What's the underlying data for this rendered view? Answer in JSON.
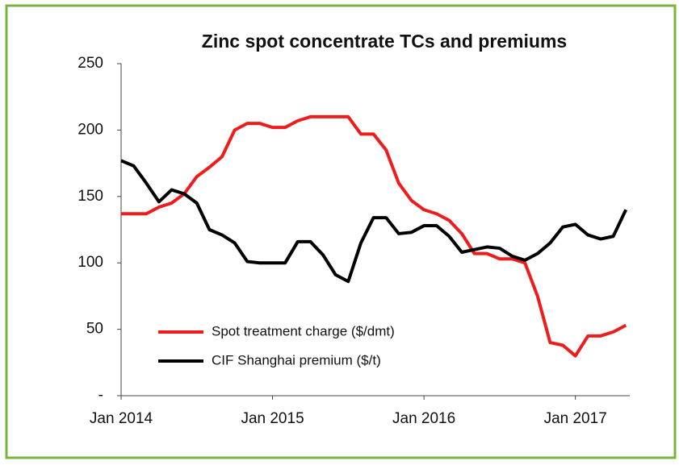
{
  "chart_data": {
    "type": "line",
    "title": "Zinc spot concentrate TCs and premiums",
    "categories": [
      "Jan 2014",
      null,
      null,
      null,
      null,
      null,
      null,
      null,
      null,
      null,
      null,
      null,
      "Jan 2015",
      null,
      null,
      null,
      null,
      null,
      null,
      null,
      null,
      null,
      null,
      null,
      "Jan 2016",
      null,
      null,
      null,
      null,
      null,
      null,
      null,
      null,
      null,
      null,
      null,
      "Jan 2017",
      null,
      null,
      null,
      null
    ],
    "series": [
      {
        "name": "Spot treatment charge ($/dmt)",
        "color": "#ee1c1c",
        "values": [
          137,
          137,
          137,
          142,
          145,
          152,
          165,
          172,
          180,
          200,
          205,
          205,
          202,
          202,
          207,
          210,
          210,
          210,
          210,
          197,
          197,
          185,
          160,
          147,
          140,
          137,
          132,
          122,
          107,
          107,
          103,
          103,
          100,
          75,
          40,
          38,
          30,
          45,
          45,
          48,
          53
        ]
      },
      {
        "name": "CIF Shanghai premium ($/t)",
        "color": "#000000",
        "values": [
          177,
          173,
          160,
          146,
          155,
          152,
          145,
          125,
          121,
          115,
          101,
          100,
          100,
          100,
          116,
          116,
          106,
          91,
          86,
          115,
          134,
          134,
          122,
          123,
          128,
          128,
          120,
          108,
          110,
          112,
          111,
          105,
          102,
          107,
          115,
          127,
          129,
          121,
          118,
          120,
          140
        ]
      }
    ],
    "ylim": [
      0,
      250
    ],
    "yticks": [
      {
        "value": 0,
        "label": "-"
      },
      50,
      100,
      150,
      200,
      250
    ]
  }
}
